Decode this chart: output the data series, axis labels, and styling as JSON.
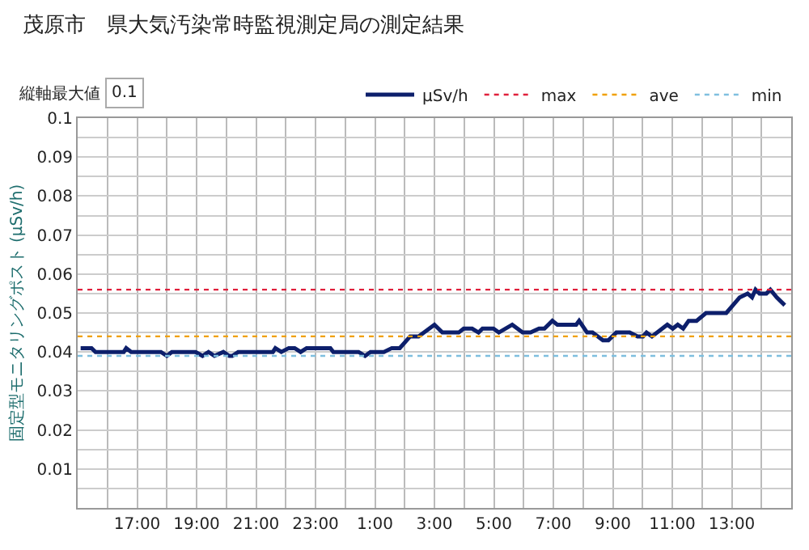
{
  "chart_data": {
    "type": "line",
    "title": "茂原市　県大気汚染常時監視測定局の測定結果",
    "ylabel": "固定型モニタリングポスト (μSv/h)",
    "annotations": [
      "縦軸最大値",
      "0.1"
    ],
    "xlim": [
      "2000-01-01T15:00",
      "2000-01-02T15:00"
    ],
    "xticks": [
      {
        "value": "2000-01-01T16:00",
        "label": null
      },
      {
        "value": "2000-01-01T17:00",
        "label": "17:00"
      },
      {
        "value": "2000-01-01T18:00",
        "label": null
      },
      {
        "value": "2000-01-01T19:00",
        "label": "19:00"
      },
      {
        "value": "2000-01-01T20:00",
        "label": null
      },
      {
        "value": "2000-01-01T21:00",
        "label": "21:00"
      },
      {
        "value": "2000-01-01T22:00",
        "label": null
      },
      {
        "value": "2000-01-01T23:00",
        "label": "23:00"
      },
      {
        "value": "2000-01-02T00:00",
        "label": null
      },
      {
        "value": "2000-01-02T01:00",
        "label": "1:00"
      },
      {
        "value": "2000-01-02T02:00",
        "label": null
      },
      {
        "value": "2000-01-02T03:00",
        "label": "3:00"
      },
      {
        "value": "2000-01-02T04:00",
        "label": null
      },
      {
        "value": "2000-01-02T05:00",
        "label": "5:00"
      },
      {
        "value": "2000-01-02T06:00",
        "label": null
      },
      {
        "value": "2000-01-02T07:00",
        "label": "7:00"
      },
      {
        "value": "2000-01-02T08:00",
        "label": null
      },
      {
        "value": "2000-01-02T09:00",
        "label": "9:00"
      },
      {
        "value": "2000-01-02T10:00",
        "label": null
      },
      {
        "value": "2000-01-02T11:00",
        "label": "11:00"
      },
      {
        "value": "2000-01-02T12:00",
        "label": null
      },
      {
        "value": "2000-01-02T13:00",
        "label": "13:00"
      },
      {
        "value": "2000-01-02T14:00",
        "label": null
      }
    ],
    "ylim": [
      0,
      0.1
    ],
    "yticks": [
      {
        "value": 0,
        "label": null
      },
      {
        "value": 0.005,
        "label": null
      },
      0.01,
      {
        "value": 0.015,
        "label": null
      },
      0.02,
      {
        "value": 0.025,
        "label": null
      },
      0.03,
      {
        "value": 0.035,
        "label": null
      },
      0.04,
      {
        "value": 0.045,
        "label": null
      },
      0.05,
      {
        "value": 0.055,
        "label": null
      },
      0.06,
      {
        "value": 0.065,
        "label": null
      },
      0.07,
      {
        "value": 0.075,
        "label": null
      },
      0.08,
      {
        "value": 0.085,
        "label": null
      },
      0.09,
      {
        "value": 0.095,
        "label": null
      },
      0.1
    ],
    "grid": true,
    "legend": "top right",
    "marker": "none",
    "series": [
      {
        "name": "μSv/h",
        "color": "#0d1f6b",
        "line_style": "solid",
        "x": [
          "2000-01-01T15:06",
          "2000-01-01T15:28",
          "2000-01-01T15:36",
          "2000-01-01T16:33",
          "2000-01-01T16:38",
          "2000-01-01T16:48",
          "2000-01-01T17:48",
          "2000-01-01T18:00",
          "2000-01-01T18:10",
          "2000-01-01T18:58",
          "2000-01-01T19:12",
          "2000-01-01T19:24",
          "2000-01-01T19:36",
          "2000-01-01T19:54",
          "2000-01-01T20:06",
          "2000-01-01T20:12",
          "2000-01-01T20:24",
          "2000-01-01T21:34",
          "2000-01-01T21:39",
          "2000-01-01T21:51",
          "2000-01-01T22:06",
          "2000-01-01T22:18",
          "2000-01-01T22:30",
          "2000-01-01T22:42",
          "2000-01-01T23:30",
          "2000-01-01T23:36",
          "2000-01-02T00:27",
          "2000-01-02T00:40",
          "2000-01-02T00:51",
          "2000-01-02T01:18",
          "2000-01-02T01:34",
          "2000-01-02T01:50",
          "2000-01-02T02:11",
          "2000-01-02T02:28",
          "2000-01-02T03:00",
          "2000-01-02T03:16",
          "2000-01-02T03:49",
          "2000-01-02T03:59",
          "2000-01-02T04:16",
          "2000-01-02T04:29",
          "2000-01-02T04:37",
          "2000-01-02T04:59",
          "2000-01-02T05:10",
          "2000-01-02T05:37",
          "2000-01-02T05:58",
          "2000-01-02T06:14",
          "2000-01-02T06:31",
          "2000-01-02T06:42",
          "2000-01-02T06:58",
          "2000-01-02T07:08",
          "2000-01-02T07:46",
          "2000-01-02T07:52",
          "2000-01-02T08:08",
          "2000-01-02T08:19",
          "2000-01-02T08:40",
          "2000-01-02T08:51",
          "2000-01-02T09:07",
          "2000-01-02T09:34",
          "2000-01-02T09:50",
          "2000-01-02T10:01",
          "2000-01-02T10:08",
          "2000-01-02T10:19",
          "2000-01-02T10:50",
          "2000-01-02T11:01",
          "2000-01-02T11:11",
          "2000-01-02T11:22",
          "2000-01-02T11:33",
          "2000-01-02T11:49",
          "2000-01-02T12:08",
          "2000-01-02T12:49",
          "2000-01-02T13:16",
          "2000-01-02T13:32",
          "2000-01-02T13:41",
          "2000-01-02T13:48",
          "2000-01-02T13:56",
          "2000-01-02T14:10",
          "2000-01-02T14:18",
          "2000-01-02T14:31",
          "2000-01-02T14:47"
        ],
        "values": [
          0.041,
          0.041,
          0.04,
          0.04,
          0.041,
          0.04,
          0.04,
          0.039,
          0.04,
          0.04,
          0.039,
          0.04,
          0.039,
          0.04,
          0.039,
          0.039,
          0.04,
          0.04,
          0.041,
          0.04,
          0.041,
          0.041,
          0.04,
          0.041,
          0.041,
          0.04,
          0.04,
          0.039,
          0.04,
          0.04,
          0.041,
          0.041,
          0.044,
          0.044,
          0.047,
          0.045,
          0.045,
          0.046,
          0.046,
          0.045,
          0.046,
          0.046,
          0.045,
          0.047,
          0.045,
          0.045,
          0.046,
          0.046,
          0.048,
          0.047,
          0.047,
          0.048,
          0.045,
          0.045,
          0.043,
          0.043,
          0.045,
          0.045,
          0.044,
          0.044,
          0.045,
          0.044,
          0.047,
          0.046,
          0.047,
          0.046,
          0.048,
          0.048,
          0.05,
          0.05,
          0.054,
          0.055,
          0.054,
          0.056,
          0.055,
          0.055,
          0.056,
          0.054,
          0.052
        ]
      },
      {
        "name": "max",
        "color": "#e0203c",
        "line_style": "dotted",
        "x": [
          "2000-01-01T15:00",
          "2000-01-02T15:00"
        ],
        "values": [
          0.056,
          0.056
        ]
      },
      {
        "name": "ave",
        "color": "#f0a000",
        "line_style": "dotted",
        "x": [
          "2000-01-01T15:00",
          "2000-01-02T15:00"
        ],
        "values": [
          0.044,
          0.044
        ]
      },
      {
        "name": "min",
        "color": "#7fbfdf",
        "line_style": "dotted",
        "x": [
          "2000-01-01T15:00",
          "2000-01-02T15:00"
        ],
        "values": [
          0.039,
          0.039
        ]
      }
    ]
  }
}
